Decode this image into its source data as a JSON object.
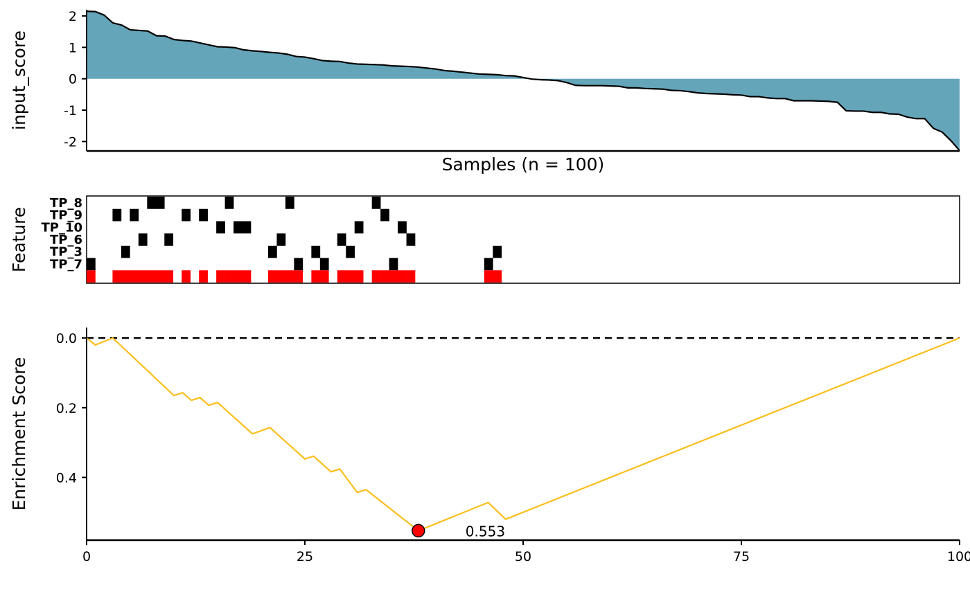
{
  "chart_data": [
    {
      "type": "area",
      "ylabel": "input_score",
      "xlabel": "Samples (n = 100)",
      "ylim": [
        -2.3,
        2.2
      ],
      "yticks": [
        2,
        1,
        0,
        -1,
        -2
      ],
      "ytick_labels": [
        "2",
        "1",
        "0",
        "-1",
        "-2"
      ],
      "fill_color": "#65A5B9",
      "line_color": "#000000",
      "values": [
        2.15,
        2.14,
        2.03,
        1.78,
        1.71,
        1.56,
        1.54,
        1.52,
        1.37,
        1.36,
        1.25,
        1.22,
        1.2,
        1.14,
        1.08,
        1.02,
        1.01,
        0.99,
        0.92,
        0.89,
        0.87,
        0.84,
        0.82,
        0.78,
        0.71,
        0.69,
        0.64,
        0.58,
        0.56,
        0.55,
        0.5,
        0.47,
        0.46,
        0.45,
        0.44,
        0.41,
        0.4,
        0.39,
        0.37,
        0.34,
        0.31,
        0.26,
        0.24,
        0.21,
        0.18,
        0.15,
        0.14,
        0.13,
        0.1,
        0.09,
        0.04,
        -0.01,
        -0.03,
        -0.04,
        -0.06,
        -0.12,
        -0.21,
        -0.22,
        -0.22,
        -0.22,
        -0.23,
        -0.24,
        -0.29,
        -0.29,
        -0.31,
        -0.32,
        -0.33,
        -0.37,
        -0.38,
        -0.41,
        -0.45,
        -0.47,
        -0.48,
        -0.49,
        -0.51,
        -0.52,
        -0.57,
        -0.57,
        -0.61,
        -0.63,
        -0.63,
        -0.7,
        -0.7,
        -0.7,
        -0.71,
        -0.72,
        -0.75,
        -1.02,
        -1.03,
        -1.03,
        -1.07,
        -1.07,
        -1.12,
        -1.13,
        -1.22,
        -1.27,
        -1.27,
        -1.58,
        -1.7,
        -1.97,
        -2.29
      ]
    },
    {
      "type": "heatmap",
      "ylabel": "Feature",
      "features": [
        {
          "name": "TP_8",
          "samples": [
            8,
            9,
            17,
            24,
            34
          ]
        },
        {
          "name": "TP_9",
          "samples": [
            4,
            6,
            12,
            14,
            35
          ]
        },
        {
          "name": "TP_10",
          "samples": [
            16,
            18,
            19,
            32,
            37
          ]
        },
        {
          "name": "TP_6",
          "samples": [
            7,
            10,
            23,
            30,
            38
          ]
        },
        {
          "name": "TP_3",
          "samples": [
            5,
            22,
            27,
            31,
            48
          ]
        },
        {
          "name": "TP_7",
          "samples": [
            1,
            25,
            28,
            36,
            47
          ]
        }
      ],
      "summary_samples": [
        1,
        4,
        5,
        6,
        7,
        8,
        9,
        10,
        12,
        14,
        16,
        17,
        18,
        19,
        22,
        23,
        24,
        25,
        27,
        28,
        30,
        31,
        32,
        34,
        35,
        36,
        37,
        38,
        47,
        48
      ],
      "feature_color": "#000000",
      "summary_color": "#FF0000"
    },
    {
      "type": "line",
      "ylabel": "Enrichment Score",
      "xlim": [
        0,
        100
      ],
      "ylim": [
        0.58,
        -0.03
      ],
      "xticks": [
        0,
        25,
        50,
        75,
        100
      ],
      "xtick_labels": [
        "0",
        "25",
        "50",
        "75",
        "100"
      ],
      "yticks": [
        0.0,
        0.2,
        0.4
      ],
      "ytick_labels": [
        "0.0",
        "0.2",
        "0.4"
      ],
      "line_color": "#FBBF1B",
      "reference_line": 0,
      "x": [
        0,
        1,
        3,
        10,
        11,
        12,
        13,
        14,
        15,
        19,
        21,
        25,
        26,
        28,
        29,
        31,
        32,
        38,
        46,
        48,
        100
      ],
      "y": [
        0.0,
        0.02,
        0.0,
        0.165,
        0.157,
        0.179,
        0.171,
        0.193,
        0.185,
        0.275,
        0.257,
        0.347,
        0.339,
        0.384,
        0.376,
        0.443,
        0.435,
        0.553,
        0.472,
        0.52,
        0.0
      ],
      "peak": {
        "x": 38,
        "y": 0.553,
        "label": "0.553",
        "marker_color": "#FF0000"
      }
    }
  ]
}
